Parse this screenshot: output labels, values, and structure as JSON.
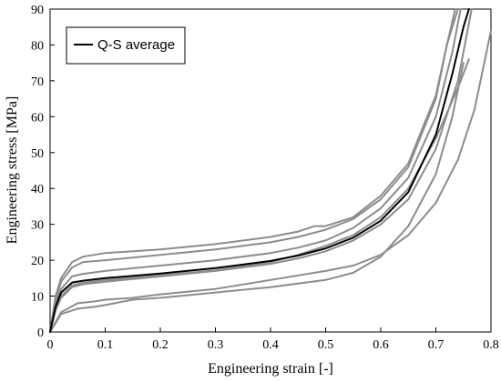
{
  "chart_data": {
    "type": "line",
    "title": "",
    "xlabel": "Engineering  strain [-]",
    "ylabel": "Engineering  stress [MPa]",
    "xlim": [
      0,
      0.8
    ],
    "ylim": [
      0,
      90
    ],
    "x_ticks": [
      "0",
      "0.1",
      "0.2",
      "0.3",
      "0.4",
      "0.5",
      "0.6",
      "0.7",
      "0.8"
    ],
    "y_ticks": [
      "0",
      "10",
      "20",
      "30",
      "40",
      "50",
      "60",
      "70",
      "80",
      "90"
    ],
    "x_tick_values": [
      0,
      0.1,
      0.2,
      0.3,
      0.4,
      0.5,
      0.6,
      0.7,
      0.8
    ],
    "y_tick_values": [
      0,
      10,
      20,
      30,
      40,
      50,
      60,
      70,
      80,
      90
    ],
    "grid": false,
    "legend": {
      "placement": "top-left",
      "entries": [
        "Q-S average"
      ]
    },
    "colors": {
      "average": "#000000",
      "samples": "#8c8c8c"
    },
    "series": [
      {
        "name": "Q-S average",
        "role": "average",
        "x": [
          0,
          0.01,
          0.02,
          0.04,
          0.06,
          0.1,
          0.2,
          0.3,
          0.4,
          0.45,
          0.5,
          0.55,
          0.6,
          0.65,
          0.7,
          0.73,
          0.75,
          0.76
        ],
        "y": [
          0,
          7,
          11,
          13.8,
          14.3,
          15,
          16.3,
          17.8,
          19.8,
          21.3,
          23.3,
          26.3,
          31,
          39,
          55,
          72,
          85,
          90
        ]
      },
      {
        "role": "sample",
        "x": [
          0,
          0.01,
          0.02,
          0.04,
          0.06,
          0.1,
          0.2,
          0.3,
          0.4,
          0.45,
          0.48,
          0.5,
          0.55,
          0.6,
          0.65,
          0.7,
          0.72,
          0.74
        ],
        "y": [
          0,
          10,
          15,
          19.5,
          21,
          22,
          23,
          24.5,
          26.5,
          28,
          29.5,
          29.5,
          32,
          38,
          47,
          66,
          80,
          90
        ]
      },
      {
        "role": "sample",
        "x": [
          0,
          0.01,
          0.02,
          0.04,
          0.06,
          0.1,
          0.2,
          0.3,
          0.4,
          0.45,
          0.5,
          0.55,
          0.6,
          0.65,
          0.7,
          0.72,
          0.735
        ],
        "y": [
          0,
          9,
          14,
          18,
          19.5,
          20,
          21.5,
          23,
          25,
          26.5,
          28.5,
          31.5,
          37,
          46,
          65,
          80,
          90
        ]
      },
      {
        "role": "sample",
        "x": [
          0,
          0.01,
          0.02,
          0.04,
          0.06,
          0.1,
          0.2,
          0.3,
          0.4,
          0.45,
          0.5,
          0.55,
          0.6,
          0.65,
          0.7,
          0.73,
          0.745
        ],
        "y": [
          0,
          8,
          12,
          15.5,
          16.2,
          17,
          18.5,
          20,
          22,
          23.5,
          25.5,
          29,
          34.5,
          43,
          60,
          78,
          90
        ]
      },
      {
        "role": "sample",
        "x": [
          0,
          0.01,
          0.02,
          0.04,
          0.06,
          0.1,
          0.2,
          0.3,
          0.4,
          0.45,
          0.5,
          0.55,
          0.6,
          0.65,
          0.7,
          0.74,
          0.765
        ],
        "y": [
          0,
          6,
          9.5,
          12.5,
          13.3,
          14,
          15.5,
          17,
          19,
          20.5,
          22.5,
          25.5,
          30,
          37,
          51,
          70,
          90
        ]
      },
      {
        "role": "sample",
        "x": [
          0,
          0.01,
          0.02,
          0.04,
          0.06,
          0.1,
          0.2,
          0.3,
          0.4,
          0.45,
          0.5,
          0.55,
          0.6,
          0.65,
          0.7,
          0.74,
          0.76
        ],
        "y": [
          0,
          6.5,
          10,
          13,
          13.7,
          14.5,
          15.8,
          17.2,
          19.5,
          21.5,
          24,
          27,
          32,
          40,
          54,
          68,
          76
        ]
      },
      {
        "role": "sample",
        "x": [
          0,
          0.02,
          0.05,
          0.08,
          0.1,
          0.15,
          0.2,
          0.3,
          0.4,
          0.5,
          0.55,
          0.6,
          0.65,
          0.7,
          0.73,
          0.75
        ],
        "y": [
          0,
          5,
          6.5,
          7,
          7.5,
          9,
          9.5,
          11,
          12.5,
          14.5,
          16.5,
          21,
          29.5,
          44,
          60,
          75
        ]
      },
      {
        "role": "sample",
        "x": [
          0,
          0.02,
          0.05,
          0.08,
          0.1,
          0.15,
          0.2,
          0.3,
          0.4,
          0.5,
          0.55,
          0.6,
          0.65,
          0.7,
          0.74,
          0.77,
          0.8
        ],
        "y": [
          0,
          5.5,
          8,
          8.5,
          9,
          9.5,
          10.5,
          12,
          14.5,
          17,
          18.5,
          21.5,
          27,
          36,
          48,
          62,
          84
        ]
      }
    ]
  }
}
